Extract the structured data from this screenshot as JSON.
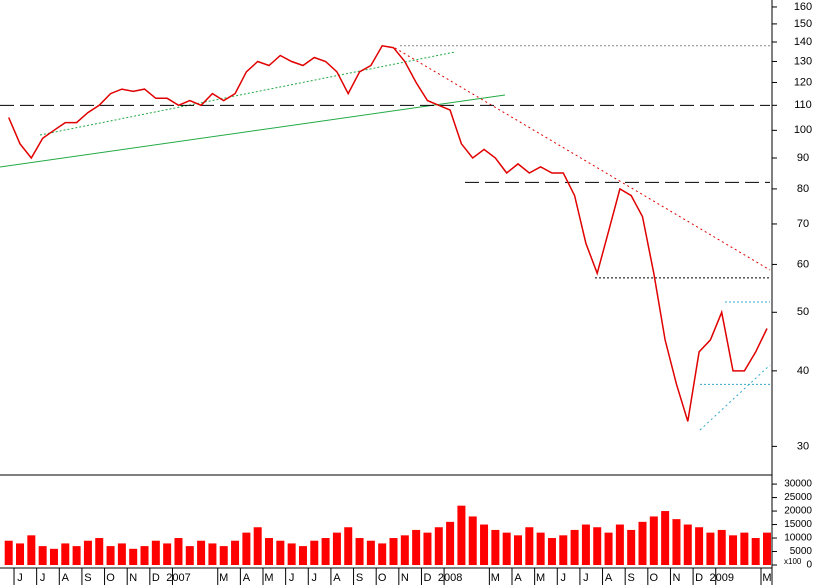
{
  "chart_data": [
    {
      "type": "line",
      "log_scale": true,
      "color": "#e00000",
      "categories": [
        null,
        "J",
        null,
        "J",
        null,
        "A",
        null,
        "S",
        null,
        "O",
        null,
        "N",
        null,
        "D",
        null,
        "2007",
        null,
        null,
        null,
        "M",
        null,
        "A",
        null,
        "M",
        null,
        "J",
        null,
        "J",
        null,
        "A",
        null,
        "S",
        null,
        "O",
        null,
        "N",
        null,
        "D",
        null,
        "2008",
        null,
        null,
        null,
        "M",
        null,
        "A",
        null,
        "M",
        null,
        "J",
        null,
        "J",
        null,
        "A",
        null,
        "S",
        null,
        "O",
        null,
        "N",
        null,
        "D",
        null,
        "2009",
        null,
        null,
        null,
        "M"
      ],
      "values": [
        105,
        95,
        90,
        97,
        100,
        103,
        103,
        107,
        110,
        115,
        117,
        116,
        117,
        113,
        113,
        110,
        112,
        110,
        115,
        112,
        115,
        125,
        130,
        128,
        133,
        130,
        128,
        132,
        130,
        125,
        115,
        125,
        128,
        138,
        137,
        130,
        120,
        112,
        110,
        108,
        95,
        90,
        93,
        90,
        85,
        88,
        85,
        87,
        85,
        85,
        78,
        65,
        58,
        68,
        80,
        78,
        72,
        58,
        45,
        38,
        33,
        43,
        45,
        50,
        40,
        40,
        43,
        47
      ],
      "ylim": [
        26.9,
        164.3
      ],
      "yticks": [
        30,
        40,
        50,
        60,
        70,
        80,
        90,
        100,
        110,
        120,
        130,
        140,
        150,
        160
      ],
      "reference_lines": [
        {
          "value": 138,
          "color": "#888888",
          "style": "dotted"
        },
        {
          "value": 110,
          "color": "#000000",
          "style": "dashed"
        },
        {
          "value": 82,
          "color": "#000000",
          "style": "dashed"
        },
        {
          "value": 57,
          "color": "#000000",
          "style": "dotted"
        },
        {
          "value": 52,
          "color": "#33aacc",
          "style": "dotted"
        },
        {
          "value": 38,
          "color": "#33aacc",
          "style": "dotted"
        }
      ]
    },
    {
      "type": "bar",
      "color": "#ff0000",
      "unit_label": "x100",
      "values": [
        9000,
        8000,
        11000,
        7000,
        6000,
        8000,
        7000,
        9000,
        10000,
        7000,
        8000,
        6000,
        7000,
        9000,
        8000,
        10000,
        7000,
        9000,
        8000,
        7000,
        9000,
        12000,
        14000,
        10000,
        9000,
        8000,
        7000,
        9000,
        10000,
        12000,
        14000,
        10000,
        9000,
        8000,
        10000,
        11000,
        13000,
        12000,
        14000,
        16000,
        22000,
        18000,
        15000,
        13000,
        12000,
        11000,
        14000,
        12000,
        10000,
        11000,
        13000,
        15000,
        14000,
        12000,
        15000,
        13000,
        16000,
        18000,
        20000,
        17000,
        15000,
        14000,
        12000,
        13000,
        11000,
        12000,
        10000,
        12000
      ],
      "ylim": [
        0,
        33000
      ],
      "yticks": [
        0,
        5000,
        10000,
        15000,
        20000,
        25000,
        30000
      ]
    }
  ]
}
